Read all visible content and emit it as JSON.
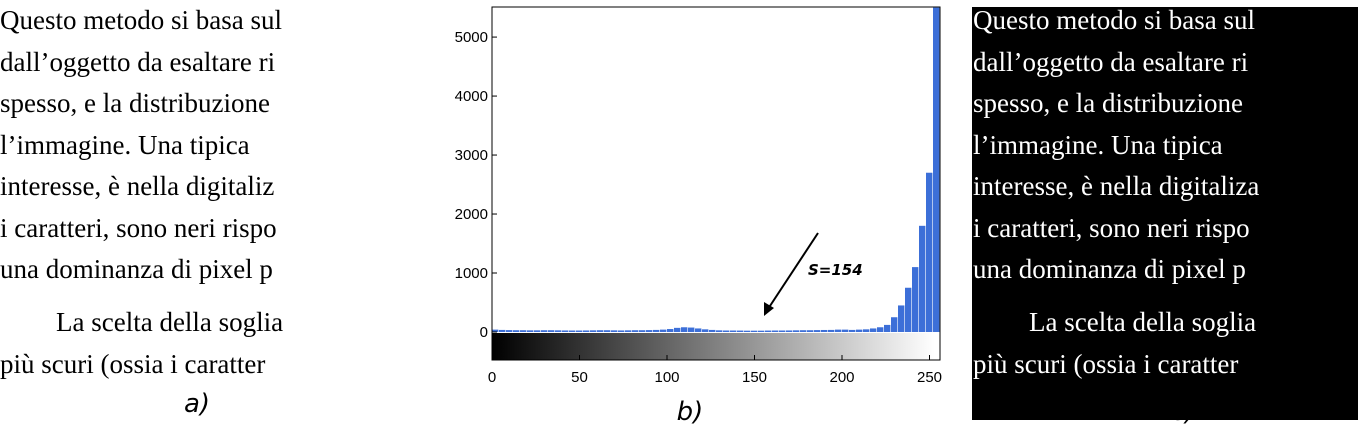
{
  "panel_a": {
    "lines": [
      "Questo metodo si basa sul",
      "dall’oggetto da esaltare ri",
      "spesso, e la distribuzione",
      "l’immagine.  Una tipica",
      "interesse, è nella digitaliz",
      "i caratteri, sono neri rispo",
      "una dominanza di pixel p",
      "La scelta della soglia",
      "più scuri (ossia i caratter"
    ],
    "caption": "a)"
  },
  "chart_data": {
    "type": "histogram",
    "bins": [
      0,
      4,
      8,
      12,
      16,
      20,
      24,
      28,
      32,
      36,
      40,
      44,
      48,
      52,
      56,
      60,
      64,
      68,
      72,
      76,
      80,
      84,
      88,
      92,
      96,
      100,
      104,
      108,
      112,
      116,
      120,
      124,
      128,
      132,
      136,
      140,
      144,
      148,
      152,
      156,
      160,
      164,
      168,
      172,
      176,
      180,
      184,
      188,
      192,
      196,
      200,
      204,
      208,
      212,
      216,
      220,
      224,
      228,
      232,
      236,
      240,
      244,
      248,
      252,
      256
    ],
    "values": [
      40,
      35,
      32,
      30,
      30,
      28,
      28,
      30,
      30,
      28,
      26,
      25,
      25,
      26,
      28,
      30,
      30,
      28,
      26,
      28,
      30,
      30,
      32,
      35,
      40,
      50,
      70,
      80,
      75,
      60,
      45,
      35,
      28,
      25,
      25,
      24,
      22,
      22,
      22,
      24,
      25,
      25,
      26,
      28,
      30,
      30,
      32,
      34,
      35,
      40,
      40,
      35,
      40,
      45,
      60,
      80,
      120,
      250,
      450,
      750,
      1100,
      1800,
      2700,
      5500
    ],
    "color": "#3c6fd8",
    "xlim": [
      0,
      256
    ],
    "ylim": [
      -475,
      5510
    ],
    "xticks": [
      0,
      50,
      100,
      150,
      200,
      250
    ],
    "yticks": [
      0,
      1000,
      2000,
      3000,
      4000,
      5000
    ],
    "annotation": "S=154",
    "caption": "b)"
  },
  "panel_c": {
    "lines": [
      "Questo metodo si basa sul",
      "dall’oggetto da esaltare ri",
      "spesso, e la distribuzione",
      "l’immagine.  Una tipica",
      "interesse, è nella digitaliza",
      "i caratteri, sono neri rispo",
      "una dominanza di pixel p",
      "La scelta della soglia",
      "più scuri (ossia i caratter"
    ],
    "caption": "c)"
  }
}
